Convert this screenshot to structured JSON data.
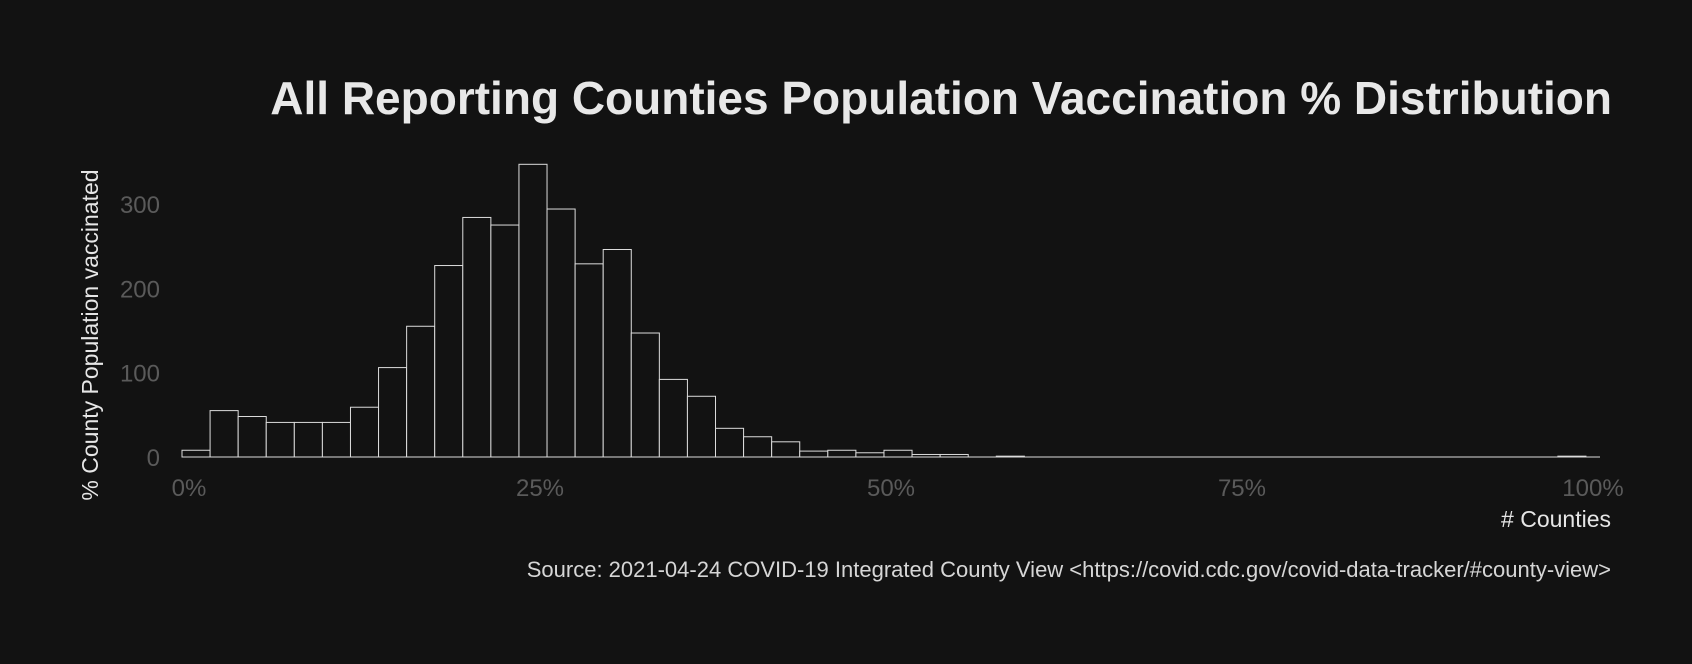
{
  "chart_data": {
    "type": "bar",
    "title": "All Reporting Counties Population Vaccination % Distribution",
    "xlabel": "# Counties",
    "ylabel": "% County Population vaccinated",
    "caption": "Source: 2021-04-24 COVID-19 Integrated County View <https://covid.cdc.gov/covid-data-tracker/#county-view>",
    "bin_width": 2,
    "x_range": [
      -0.5,
      100.5
    ],
    "ylim": [
      0,
      345
    ],
    "x_ticks": [
      0,
      25,
      50,
      75,
      100
    ],
    "x_tick_labels": [
      "0%",
      "25%",
      "50%",
      "75%",
      "100%"
    ],
    "y_ticks": [
      0,
      100,
      200,
      300
    ],
    "y_tick_labels": [
      "0",
      "100",
      "200",
      "300"
    ],
    "grid": false,
    "legend": "none",
    "colors": {
      "background": "#121212",
      "bar_fill": "#121212",
      "bar_edge": "#dcdcdc",
      "title": "#e8e8e8",
      "tick_labels": "#5a5a5a",
      "axis_labels": "#e6e6e6",
      "caption": "#d6d6d6"
    },
    "bins": [
      {
        "x_start": -0.5,
        "x_end": 1.5,
        "count": 8
      },
      {
        "x_start": 1.5,
        "x_end": 3.5,
        "count": 55
      },
      {
        "x_start": 3.5,
        "x_end": 5.5,
        "count": 48
      },
      {
        "x_start": 5.5,
        "x_end": 7.5,
        "count": 41
      },
      {
        "x_start": 7.5,
        "x_end": 9.5,
        "count": 41
      },
      {
        "x_start": 9.5,
        "x_end": 11.5,
        "count": 41
      },
      {
        "x_start": 11.5,
        "x_end": 13.5,
        "count": 59
      },
      {
        "x_start": 13.5,
        "x_end": 15.5,
        "count": 106
      },
      {
        "x_start": 15.5,
        "x_end": 17.5,
        "count": 155
      },
      {
        "x_start": 17.5,
        "x_end": 19.5,
        "count": 227
      },
      {
        "x_start": 19.5,
        "x_end": 21.5,
        "count": 284
      },
      {
        "x_start": 21.5,
        "x_end": 23.5,
        "count": 275
      },
      {
        "x_start": 23.5,
        "x_end": 25.5,
        "count": 347
      },
      {
        "x_start": 25.5,
        "x_end": 27.5,
        "count": 294
      },
      {
        "x_start": 27.5,
        "x_end": 29.5,
        "count": 229
      },
      {
        "x_start": 29.5,
        "x_end": 31.5,
        "count": 246
      },
      {
        "x_start": 31.5,
        "x_end": 33.5,
        "count": 147
      },
      {
        "x_start": 33.5,
        "x_end": 35.5,
        "count": 92
      },
      {
        "x_start": 35.5,
        "x_end": 37.5,
        "count": 72
      },
      {
        "x_start": 37.5,
        "x_end": 39.5,
        "count": 34
      },
      {
        "x_start": 39.5,
        "x_end": 41.5,
        "count": 24
      },
      {
        "x_start": 41.5,
        "x_end": 43.5,
        "count": 18
      },
      {
        "x_start": 43.5,
        "x_end": 45.5,
        "count": 7
      },
      {
        "x_start": 45.5,
        "x_end": 47.5,
        "count": 8
      },
      {
        "x_start": 47.5,
        "x_end": 49.5,
        "count": 5
      },
      {
        "x_start": 49.5,
        "x_end": 51.5,
        "count": 8
      },
      {
        "x_start": 51.5,
        "x_end": 53.5,
        "count": 3
      },
      {
        "x_start": 53.5,
        "x_end": 55.5,
        "count": 3
      },
      {
        "x_start": 55.5,
        "x_end": 57.5,
        "count": 0
      },
      {
        "x_start": 57.5,
        "x_end": 59.5,
        "count": 1
      },
      {
        "x_start": 97.5,
        "x_end": 99.5,
        "count": 1
      }
    ]
  }
}
